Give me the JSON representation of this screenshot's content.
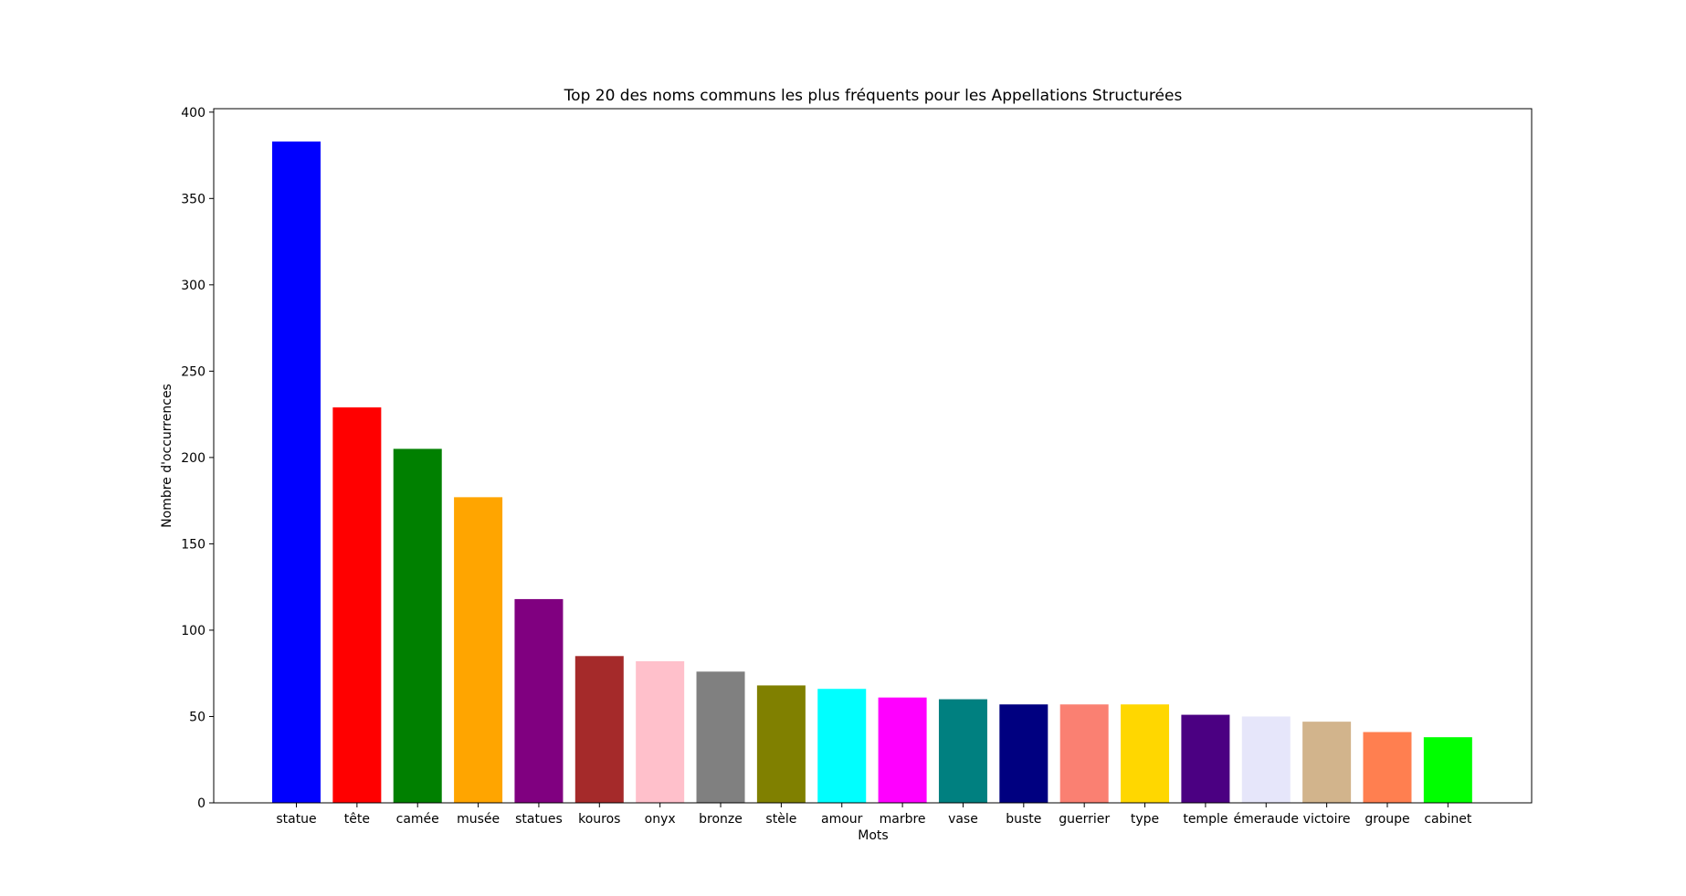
{
  "chart_data": {
    "type": "bar",
    "title": "Top 20 des noms communs les plus fréquents pour les Appellations Structurées",
    "xlabel": "Mots",
    "ylabel": "Nombre d'occurrences",
    "ylim": [
      0,
      402
    ],
    "yticks": [
      0,
      50,
      100,
      150,
      200,
      250,
      300,
      350,
      400
    ],
    "grid": false,
    "legend": "none",
    "categories": [
      "statue",
      "tête",
      "camée",
      "musée",
      "statues",
      "kouros",
      "onyx",
      "bronze",
      "stèle",
      "amour",
      "marbre",
      "vase",
      "buste",
      "guerrier",
      "type",
      "temple",
      "émeraude",
      "victoire",
      "groupe",
      "cabinet"
    ],
    "values": [
      383,
      229,
      205,
      177,
      118,
      85,
      82,
      76,
      68,
      66,
      61,
      60,
      57,
      57,
      57,
      51,
      50,
      47,
      41,
      38
    ],
    "colors": [
      "#0000ff",
      "#ff0000",
      "#008000",
      "#ffa500",
      "#800080",
      "#a52a2a",
      "#ffc0cb",
      "#808080",
      "#808000",
      "#00ffff",
      "#ff00ff",
      "#008080",
      "#000080",
      "#fa8072",
      "#ffd700",
      "#4b0082",
      "#e6e6fa",
      "#d2b48c",
      "#ff7f50",
      "#00ff00"
    ]
  }
}
